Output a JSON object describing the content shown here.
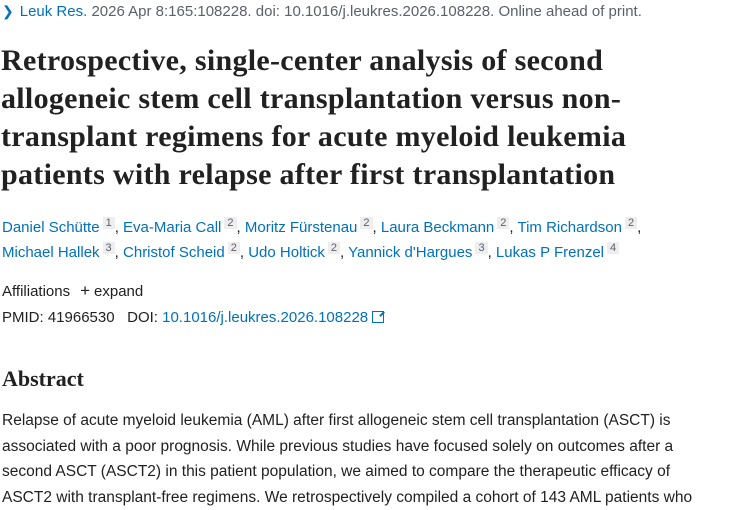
{
  "citation": {
    "journal": "Leuk Res.",
    "details": " 2026 Apr 8:165:108228. doi: 10.1016/j.leukres.2026.108228. Online ahead of print."
  },
  "title_lines": [
    "Retrospective, single-center analysis of second",
    "allogeneic stem cell transplantation versus non-",
    "transplant regimens for acute myeloid leukemia",
    "patients with relapse after first transplantation"
  ],
  "authors": [
    {
      "name": "Daniel Schütte",
      "aff": "1"
    },
    {
      "name": "Eva-Maria Call",
      "aff": "2"
    },
    {
      "name": "Moritz Fürstenau",
      "aff": "2"
    },
    {
      "name": "Laura Beckmann",
      "aff": "2"
    },
    {
      "name": "Tim Richardson",
      "aff": "2"
    },
    {
      "name": "Michael Hallek",
      "aff": "3"
    },
    {
      "name": "Christof Scheid",
      "aff": "2"
    },
    {
      "name": "Udo Holtick",
      "aff": "2"
    },
    {
      "name": "Yannick d'Hargues",
      "aff": "3"
    },
    {
      "name": "Lukas P Frenzel",
      "aff": "4"
    }
  ],
  "affiliations": {
    "label": "Affiliations",
    "expand": "expand"
  },
  "ids": {
    "pmid_label": "PMID:",
    "pmid": "41966530",
    "doi_label": "DOI:",
    "doi": "10.1016/j.leukres.2026.108228"
  },
  "abstract": {
    "heading": "Abstract",
    "lines": [
      "Relapse of acute myeloid leukemia (AML) after first allogeneic stem cell transplantation (ASCT) is",
      "associated with a poor prognosis. While previous studies have focused solely on outcomes after a",
      "second ASCT (ASCT2) in this patient population, we aimed to compare the therapeutic efficacy of",
      "ASCT2 with transplant-free regimens. We retrospectively compiled a cohort of 143 AML patients who"
    ]
  }
}
